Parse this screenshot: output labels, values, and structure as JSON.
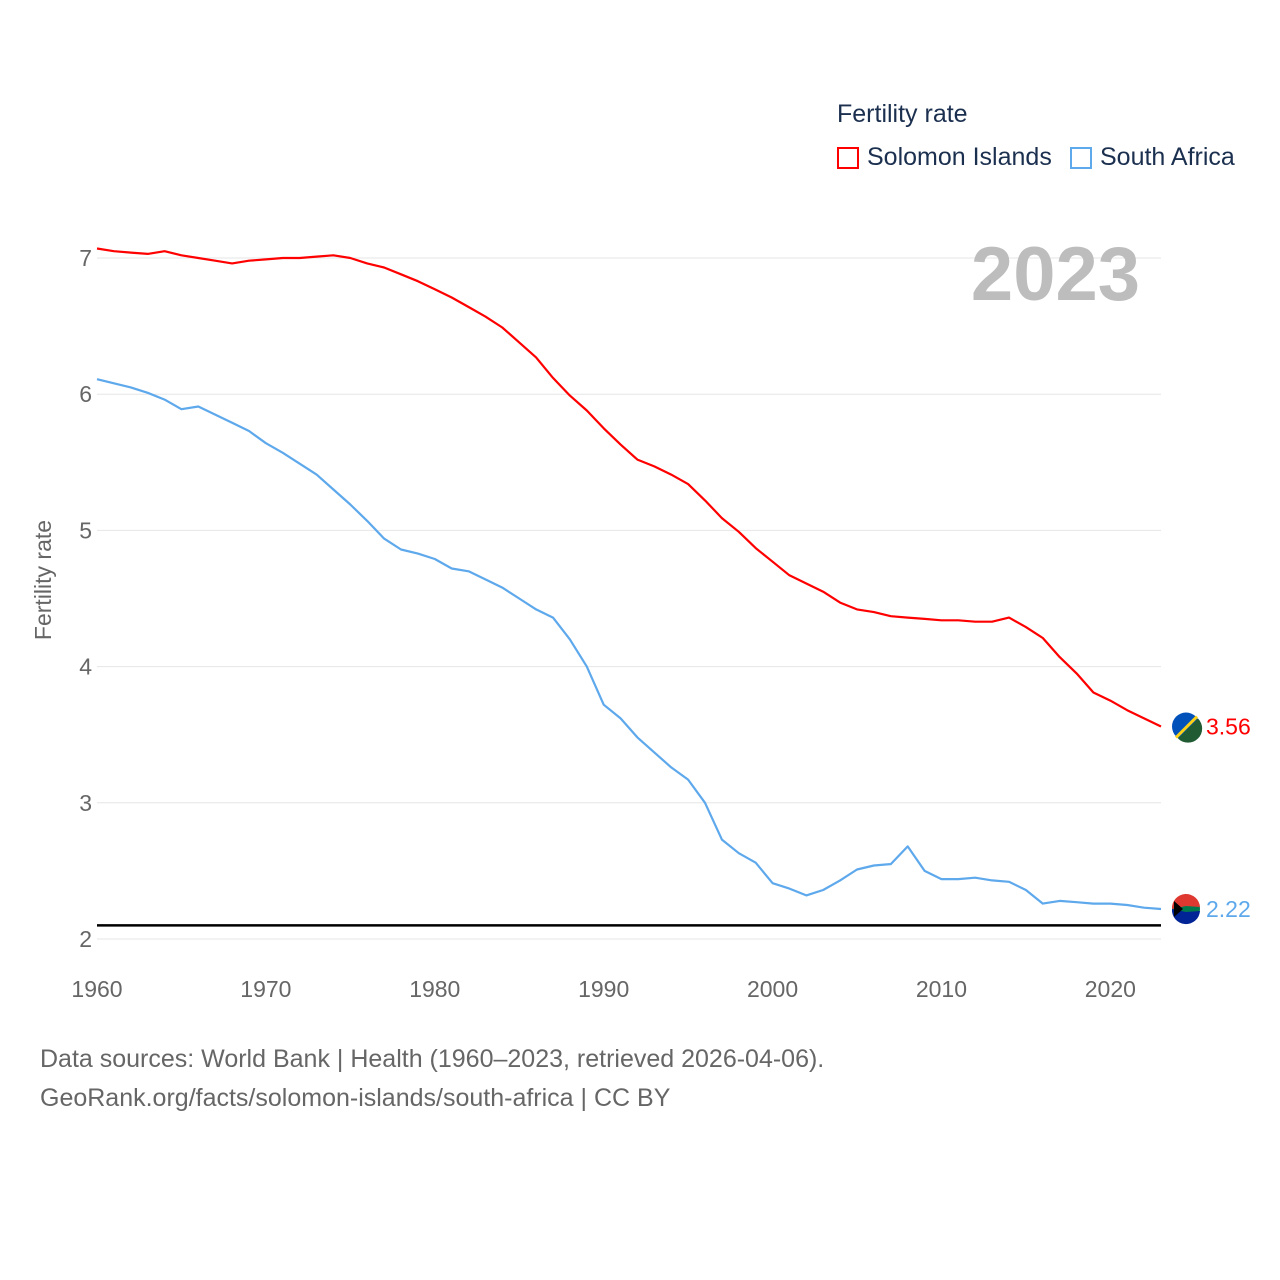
{
  "chart_data": {
    "type": "line",
    "title": "Fertility rate",
    "ylabel": "Fertility rate",
    "xlabel": "",
    "year_label": "2023",
    "xlim": [
      1960,
      2023
    ],
    "ylim": [
      1.9,
      7.1
    ],
    "x_ticks": [
      1960,
      1970,
      1980,
      1990,
      2000,
      2010,
      2020
    ],
    "y_ticks": [
      2,
      3,
      4,
      5,
      6,
      7
    ],
    "grid": true,
    "legend_position": "top-right",
    "reference_line": 2.1,
    "x_start": 1960,
    "series": [
      {
        "name": "Solomon Islands",
        "color": "#ff0000",
        "end_label": "3.56",
        "values": [
          7.07,
          7.05,
          7.04,
          7.03,
          7.05,
          7.02,
          7.0,
          6.98,
          6.96,
          6.98,
          6.99,
          7.0,
          7.0,
          7.01,
          7.02,
          7.0,
          6.96,
          6.93,
          6.88,
          6.83,
          6.77,
          6.71,
          6.64,
          6.57,
          6.49,
          6.38,
          6.27,
          6.12,
          5.99,
          5.88,
          5.75,
          5.63,
          5.52,
          5.47,
          5.41,
          5.34,
          5.22,
          5.09,
          4.99,
          4.87,
          4.77,
          4.67,
          4.61,
          4.55,
          4.47,
          4.42,
          4.4,
          4.37,
          4.36,
          4.35,
          4.34,
          4.34,
          4.33,
          4.33,
          4.36,
          4.29,
          4.21,
          4.07,
          3.95,
          3.81,
          3.75,
          3.68,
          3.62,
          3.56
        ]
      },
      {
        "name": "South Africa",
        "color": "#5ea8ec",
        "end_label": "2.22",
        "values": [
          6.11,
          6.08,
          6.05,
          6.01,
          5.96,
          5.89,
          5.91,
          5.85,
          5.79,
          5.73,
          5.64,
          5.57,
          5.49,
          5.41,
          5.3,
          5.19,
          5.07,
          4.94,
          4.86,
          4.83,
          4.79,
          4.72,
          4.7,
          4.64,
          4.58,
          4.5,
          4.42,
          4.36,
          4.2,
          4.0,
          3.72,
          3.62,
          3.48,
          3.37,
          3.26,
          3.17,
          3.0,
          2.73,
          2.63,
          2.56,
          2.41,
          2.37,
          2.32,
          2.36,
          2.43,
          2.51,
          2.54,
          2.55,
          2.68,
          2.5,
          2.44,
          2.44,
          2.45,
          2.43,
          2.42,
          2.36,
          2.26,
          2.28,
          2.27,
          2.26,
          2.26,
          2.25,
          2.23,
          2.22
        ]
      }
    ]
  },
  "footer": {
    "line1": "Data sources: World Bank | Health (1960–2023, retrieved 2026-04-06).",
    "line2": "GeoRank.org/facts/solomon-islands/south-africa | CC BY"
  }
}
